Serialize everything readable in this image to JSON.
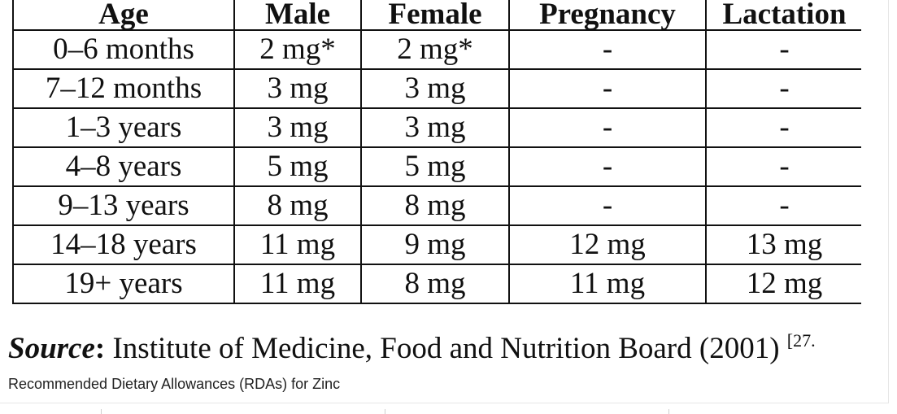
{
  "table": {
    "headers": [
      "Age",
      "Male",
      "Female",
      "Pregnancy",
      "Lactation"
    ],
    "rows": [
      [
        "0–6 months",
        "2 mg*",
        "2 mg*",
        "-",
        "-"
      ],
      [
        "7–12 months",
        "3 mg",
        "3 mg",
        "-",
        "-"
      ],
      [
        "1–3 years",
        "3 mg",
        "3 mg",
        "-",
        "-"
      ],
      [
        "4–8 years",
        "5 mg",
        "5 mg",
        "-",
        "-"
      ],
      [
        "9–13 years",
        "8 mg",
        "8 mg",
        "-",
        "-"
      ],
      [
        "14–18 years",
        "11 mg",
        "9 mg",
        "12 mg",
        "13 mg"
      ],
      [
        "19+ years",
        "11 mg",
        "8 mg",
        "11 mg",
        "12 mg"
      ]
    ]
  },
  "source": {
    "label": "Source",
    "text": "Institute of Medicine, Food and Nutrition Board (2001)",
    "ref": "[27."
  },
  "caption": "Recommended Dietary Allowances (RDAs) for Zinc"
}
